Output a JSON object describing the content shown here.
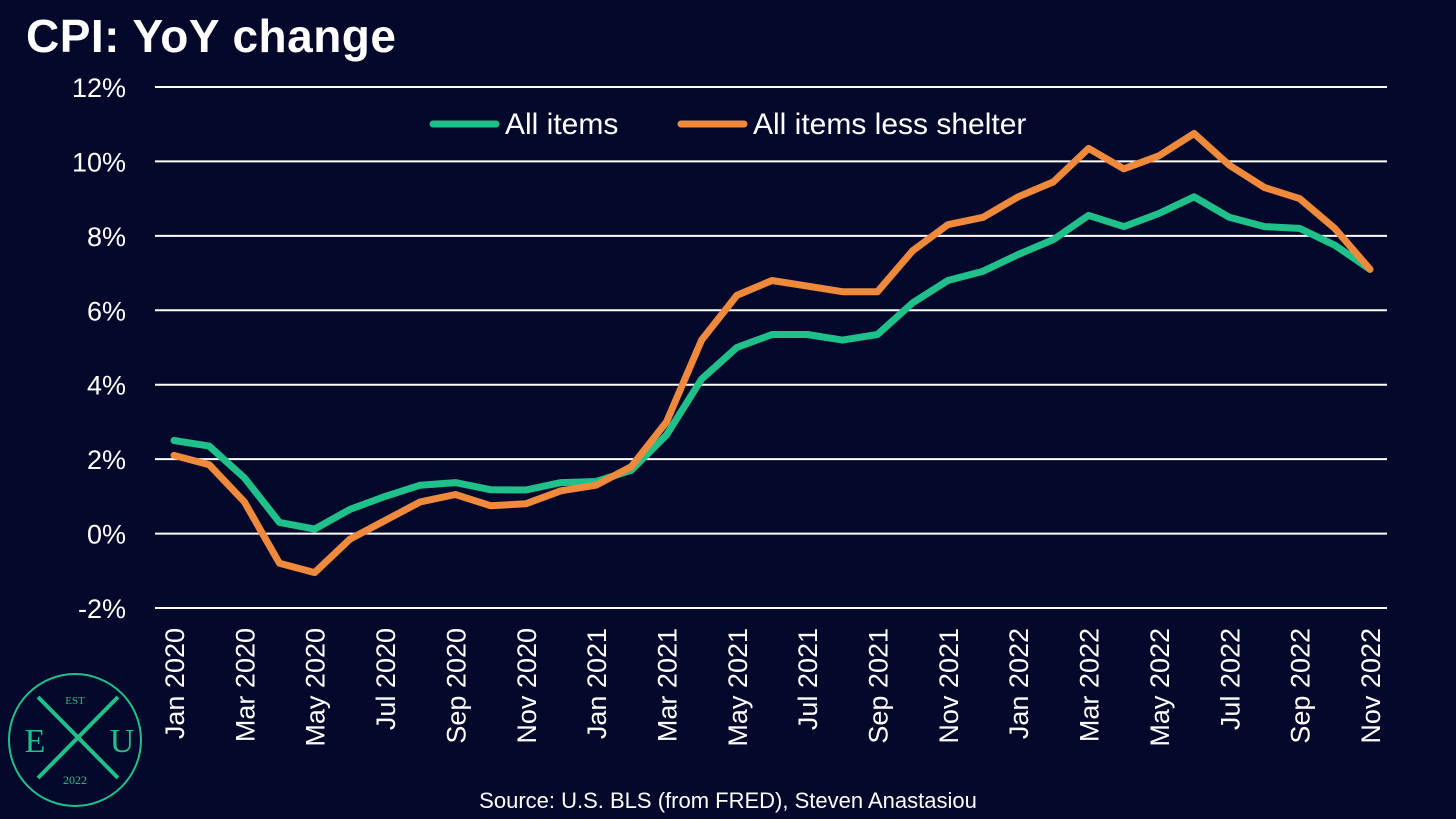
{
  "title": "CPI: YoY change",
  "source": "Source: U.S. BLS (from FRED), Steven Anastasiou",
  "colors": {
    "background": "#04092b",
    "all_items": "#1fc08a",
    "less_shelter": "#ef8a3c",
    "grid": "#ffffff",
    "logo": "#1fc08a"
  },
  "logo": {
    "top": "EST",
    "left": "E",
    "right": "U",
    "bottom": "2022"
  },
  "chart_data": {
    "type": "line",
    "title": "CPI: YoY change",
    "xlabel": "",
    "ylabel": "",
    "ylim": [
      -2,
      12
    ],
    "y_ticks": [
      "12%",
      "10%",
      "8%",
      "6%",
      "4%",
      "2%",
      "0%",
      "-2%"
    ],
    "grid": true,
    "legend_position": "top",
    "x_tick_labels": [
      "Jan 2020",
      "Mar 2020",
      "May 2020",
      "Jul 2020",
      "Sep 2020",
      "Nov 2020",
      "Jan 2021",
      "Mar 2021",
      "May 2021",
      "Jul 2021",
      "Sep 2021",
      "Nov 2021",
      "Jan 2022",
      "Mar 2022",
      "May 2022",
      "Jul 2022",
      "Sep 2022",
      "Nov 2022"
    ],
    "x": [
      "2020-01",
      "2020-02",
      "2020-03",
      "2020-04",
      "2020-05",
      "2020-06",
      "2020-07",
      "2020-08",
      "2020-09",
      "2020-10",
      "2020-11",
      "2020-12",
      "2021-01",
      "2021-02",
      "2021-03",
      "2021-04",
      "2021-05",
      "2021-06",
      "2021-07",
      "2021-08",
      "2021-09",
      "2021-10",
      "2021-11",
      "2021-12",
      "2022-01",
      "2022-02",
      "2022-03",
      "2022-04",
      "2022-05",
      "2022-06",
      "2022-07",
      "2022-08",
      "2022-09",
      "2022-10",
      "2022-11"
    ],
    "series": [
      {
        "name": "All items",
        "color": "#1fc08a",
        "values": [
          2.5,
          2.35,
          1.5,
          0.3,
          0.12,
          0.65,
          1.0,
          1.3,
          1.37,
          1.18,
          1.17,
          1.37,
          1.4,
          1.7,
          2.65,
          4.15,
          5.0,
          5.35,
          5.35,
          5.2,
          5.35,
          6.2,
          6.8,
          7.05,
          7.5,
          7.9,
          8.55,
          8.25,
          8.6,
          9.05,
          8.5,
          8.25,
          8.2,
          7.75,
          7.1
        ]
      },
      {
        "name": "All items less shelter",
        "color": "#ef8a3c",
        "values": [
          2.1,
          1.85,
          0.85,
          -0.8,
          -1.05,
          -0.15,
          0.35,
          0.85,
          1.05,
          0.75,
          0.8,
          1.15,
          1.3,
          1.8,
          3.0,
          5.2,
          6.4,
          6.8,
          6.65,
          6.5,
          6.5,
          7.6,
          8.3,
          8.5,
          9.05,
          9.45,
          10.35,
          9.8,
          10.15,
          10.75,
          9.9,
          9.3,
          9.0,
          8.2,
          7.1
        ]
      }
    ]
  }
}
